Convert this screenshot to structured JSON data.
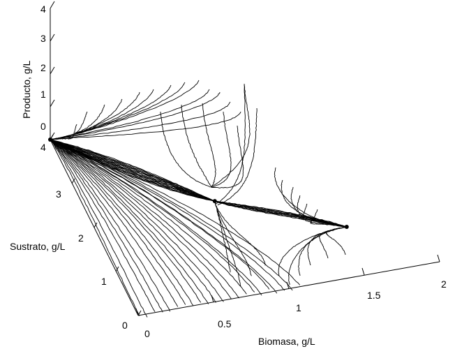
{
  "chart_data": {
    "type": "line",
    "projection": "3d",
    "xlabel": "Biomasa, g/L",
    "ylabel": "Sustrato, g/L",
    "zlabel": "Producto, g/L",
    "xlim": [
      0,
      2
    ],
    "ylim": [
      0,
      4
    ],
    "zlim": [
      0,
      4
    ],
    "x_ticks": [
      "0",
      "0.5",
      "1",
      "1.5",
      "2"
    ],
    "y_ticks": [
      "0",
      "1",
      "2",
      "3",
      "4"
    ],
    "z_ticks": [
      "0",
      "1",
      "2",
      "3",
      "4"
    ],
    "grid": false,
    "critical_points": [
      {
        "x": 0,
        "y": 4,
        "z": 0
      },
      {
        "x": 0.8,
        "y": 2.0,
        "z": 0.15
      },
      {
        "x": 1.5,
        "y": 0.8,
        "z": 0.4
      }
    ],
    "trajectory_count": 60
  }
}
